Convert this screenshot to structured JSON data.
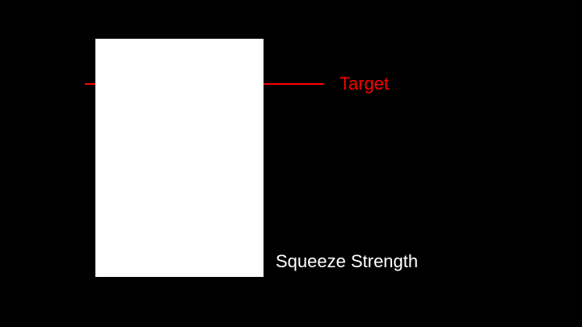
{
  "target": {
    "label": "Target",
    "color": "#ff0000"
  },
  "strength": {
    "label": "Squeeze Strength",
    "bar_color": "#ffffff",
    "label_color": "#ffffff"
  },
  "background_color": "#000000"
}
